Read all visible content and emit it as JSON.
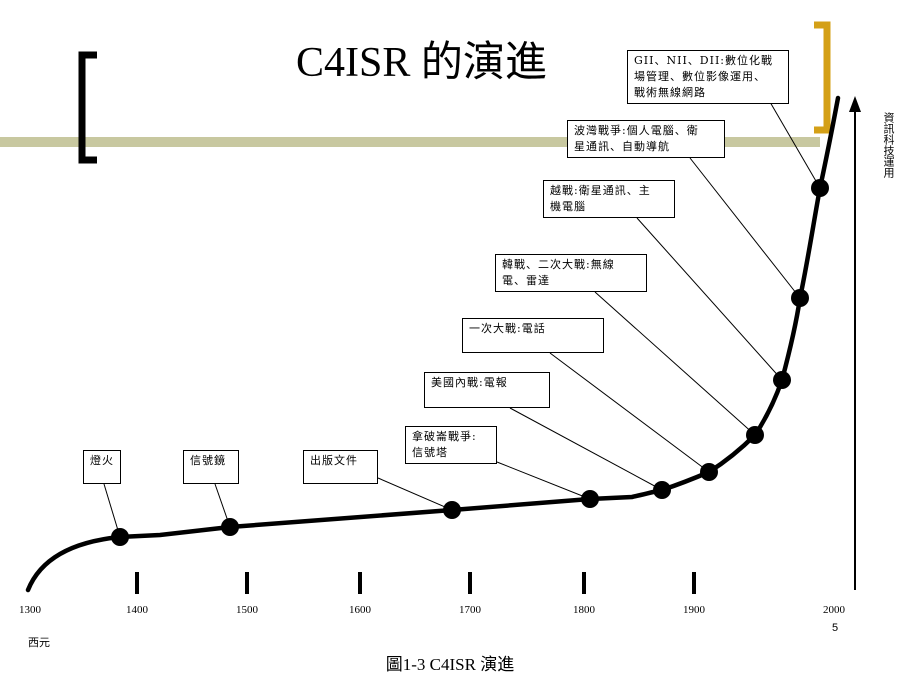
{
  "slide": {
    "title": "C4ISR 的演進",
    "caption": "圖1-3 C4ISR 演進",
    "era_label": "西元",
    "page_number": "5",
    "vertical_axis_label": "資訊科技運用"
  },
  "timeline": {
    "years": [
      "1300",
      "1400",
      "1500",
      "1600",
      "1700",
      "1800",
      "1900",
      "2000"
    ]
  },
  "events": [
    {
      "id": "beacon",
      "label_lines": [
        "燈火"
      ]
    },
    {
      "id": "signal-mirror",
      "label_lines": [
        "信號鏡"
      ]
    },
    {
      "id": "printing",
      "label_lines": [
        "出版文件"
      ]
    },
    {
      "id": "napoleonic",
      "label_lines": [
        "拿破崙戰爭:",
        "信號塔"
      ]
    },
    {
      "id": "civil-war",
      "label_lines": [
        "美國內戰:電報"
      ]
    },
    {
      "id": "ww1",
      "label_lines": [
        "一次大戰:電話"
      ]
    },
    {
      "id": "korea-ww2",
      "label_lines": [
        "韓戰、二次大戰:無線",
        "電、雷達"
      ]
    },
    {
      "id": "vietnam",
      "label_lines": [
        "越戰:衛星通訊、主",
        "機電腦"
      ]
    },
    {
      "id": "gulf-war",
      "label_lines": [
        "波灣戰爭:個人電腦、衛",
        "星通訊、自動導航"
      ]
    },
    {
      "id": "gii",
      "label_lines": [
        "GII、NII、DII:數位化戰",
        "場管理、數位影像運用、",
        "戰術無線網路"
      ]
    }
  ],
  "colors": {
    "accent_bar": "#c8c8a0",
    "left_bracket": "#000000",
    "right_bracket": "#d4a017",
    "curve": "#000000"
  }
}
